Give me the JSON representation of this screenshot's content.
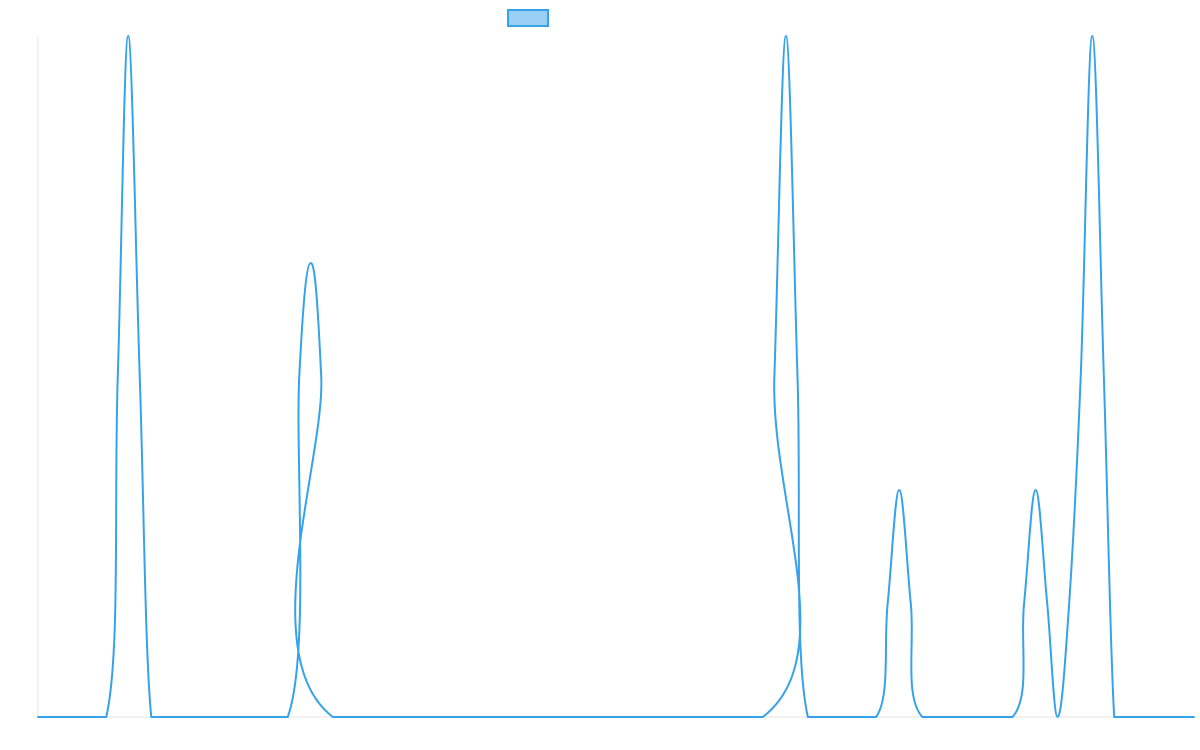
{
  "chart_data": {
    "type": "line",
    "title": "",
    "xlabel": "",
    "ylabel": "",
    "xlim": [
      0,
      100
    ],
    "ylim": [
      0,
      3
    ],
    "grid": false,
    "legend": {
      "placement": "top-center",
      "entries": [
        {
          "label": "",
          "color": "#36a2eb",
          "fill": "#9ad0f5"
        }
      ]
    },
    "series": [
      {
        "color": "#36a2eb",
        "x": [
          0,
          5.9,
          6.9,
          7.8,
          8.8,
          9.8,
          11.8,
          21.6,
          22.6,
          23.6,
          24.5,
          25.5,
          62.7,
          63.7,
          64.7,
          65.7,
          66.6,
          72.5,
          73.5,
          74.5,
          75.5,
          76.5,
          84.3,
          85.3,
          86.3,
          87.3,
          88.2,
          89.2,
          90.2,
          91.2,
          92.2,
          93.1,
          94.1,
          100
        ],
        "y": [
          0,
          0,
          1.5,
          3,
          1.5,
          0,
          0,
          0,
          1.5,
          2,
          1.5,
          0,
          0,
          1.5,
          3,
          1.5,
          0,
          0,
          0.5,
          1,
          0.5,
          0,
          0,
          0.5,
          1,
          0.5,
          0,
          0.5,
          1.5,
          3,
          1.5,
          0,
          0,
          0
        ]
      }
    ]
  }
}
